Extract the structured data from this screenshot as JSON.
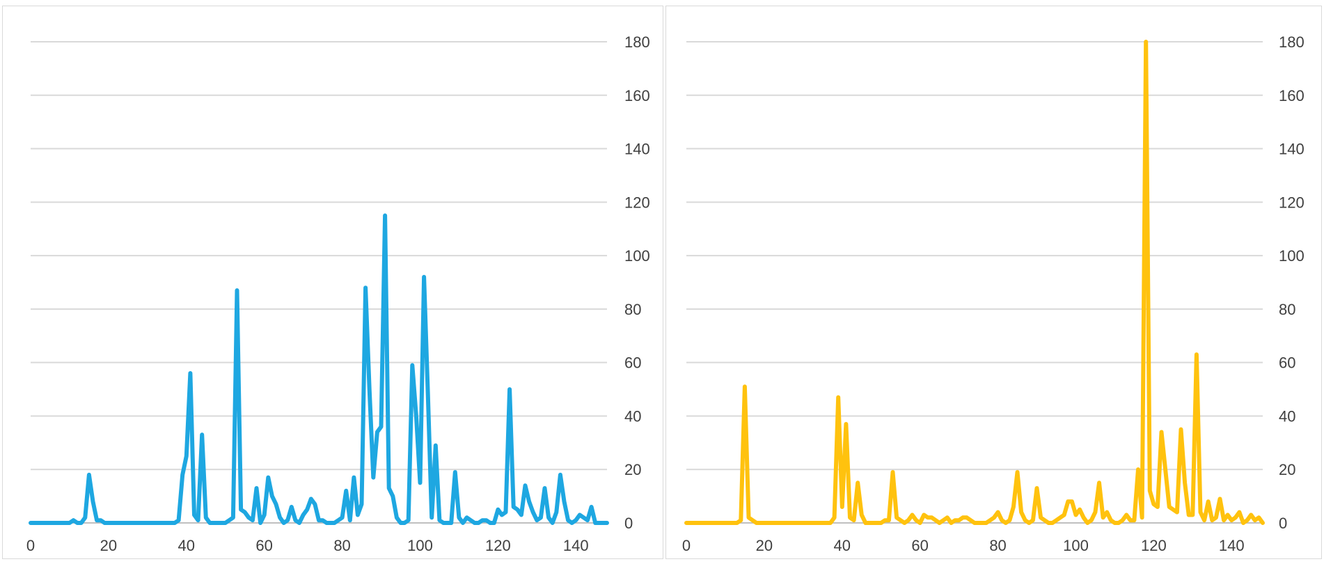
{
  "chart_data": [
    {
      "type": "line",
      "color": "#1ea7e1",
      "y_axis_side": "right",
      "xlim": [
        0,
        148
      ],
      "ylim": [
        0,
        180
      ],
      "x_ticks": [
        0,
        20,
        40,
        60,
        80,
        100,
        120,
        140
      ],
      "y_ticks": [
        0,
        20,
        40,
        60,
        80,
        100,
        120,
        140,
        160,
        180
      ],
      "grid": "horizontal",
      "legend": "none",
      "series": [
        {
          "x": [
            0,
            10,
            11,
            12,
            13,
            14,
            15,
            16,
            17,
            18,
            19,
            20,
            30,
            37,
            38,
            39,
            40,
            41,
            42,
            43,
            44,
            45,
            46,
            50,
            51,
            52,
            53,
            54,
            55,
            56,
            57,
            58,
            59,
            60,
            61,
            62,
            63,
            64,
            65,
            66,
            67,
            68,
            69,
            70,
            71,
            72,
            73,
            74,
            75,
            76,
            77,
            78,
            79,
            80,
            81,
            82,
            83,
            84,
            85,
            86,
            87,
            88,
            89,
            90,
            91,
            92,
            93,
            94,
            95,
            96,
            97,
            98,
            99,
            100,
            101,
            102,
            103,
            104,
            105,
            106,
            107,
            108,
            109,
            110,
            111,
            112,
            113,
            114,
            115,
            116,
            117,
            118,
            119,
            120,
            121,
            122,
            123,
            124,
            125,
            126,
            127,
            128,
            129,
            130,
            131,
            132,
            133,
            134,
            135,
            136,
            137,
            138,
            139,
            140,
            141,
            142,
            143,
            144,
            145,
            148
          ],
          "values": [
            0,
            0,
            1,
            0,
            0,
            2,
            18,
            8,
            1,
            1,
            0,
            0,
            0,
            0,
            1,
            18,
            25,
            56,
            3,
            1,
            33,
            2,
            0,
            0,
            1,
            2,
            87,
            5,
            4,
            2,
            1,
            13,
            0,
            3,
            17,
            10,
            7,
            2,
            0,
            1,
            6,
            1,
            0,
            3,
            5,
            9,
            7,
            1,
            1,
            0,
            0,
            0,
            1,
            2,
            12,
            1,
            17,
            3,
            7,
            88,
            50,
            17,
            34,
            36,
            115,
            13,
            10,
            2,
            0,
            0,
            1,
            59,
            40,
            15,
            92,
            49,
            2,
            29,
            1,
            0,
            0,
            0,
            19,
            2,
            0,
            2,
            1,
            0,
            0,
            1,
            1,
            0,
            0,
            5,
            3,
            4,
            50,
            6,
            5,
            3,
            14,
            8,
            4,
            1,
            2,
            13,
            2,
            0,
            4,
            18,
            8,
            1,
            0,
            1,
            3,
            2,
            1,
            6,
            0,
            0
          ]
        }
      ]
    },
    {
      "type": "line",
      "color": "#ffc20e",
      "y_axis_side": "right",
      "xlim": [
        0,
        148
      ],
      "ylim": [
        0,
        180
      ],
      "x_ticks": [
        0,
        20,
        40,
        60,
        80,
        100,
        120,
        140
      ],
      "y_ticks": [
        0,
        20,
        40,
        60,
        80,
        100,
        120,
        140,
        160,
        180
      ],
      "grid": "horizontal",
      "legend": "none",
      "series": [
        {
          "x": [
            0,
            13,
            14,
            15,
            16,
            17,
            18,
            20,
            30,
            37,
            38,
            39,
            40,
            41,
            42,
            43,
            44,
            45,
            46,
            50,
            51,
            52,
            53,
            54,
            55,
            56,
            57,
            58,
            59,
            60,
            61,
            62,
            63,
            64,
            65,
            66,
            67,
            68,
            69,
            70,
            71,
            72,
            73,
            74,
            75,
            76,
            77,
            78,
            79,
            80,
            81,
            82,
            83,
            84,
            85,
            86,
            87,
            88,
            89,
            90,
            91,
            92,
            93,
            94,
            95,
            96,
            97,
            98,
            99,
            100,
            101,
            102,
            103,
            104,
            105,
            106,
            107,
            108,
            109,
            110,
            111,
            112,
            113,
            114,
            115,
            116,
            117,
            118,
            119,
            120,
            121,
            122,
            123,
            124,
            125,
            126,
            127,
            128,
            129,
            130,
            131,
            132,
            133,
            134,
            135,
            136,
            137,
            138,
            139,
            140,
            141,
            142,
            143,
            144,
            145,
            146,
            147,
            148
          ],
          "values": [
            0,
            0,
            1,
            51,
            2,
            1,
            0,
            0,
            0,
            0,
            2,
            47,
            6,
            37,
            2,
            1,
            15,
            3,
            0,
            0,
            1,
            1,
            19,
            2,
            1,
            0,
            1,
            3,
            1,
            0,
            3,
            2,
            2,
            1,
            0,
            1,
            2,
            0,
            1,
            1,
            2,
            2,
            1,
            0,
            0,
            0,
            0,
            1,
            2,
            4,
            1,
            0,
            1,
            6,
            19,
            4,
            1,
            0,
            1,
            13,
            2,
            1,
            0,
            0,
            1,
            2,
            3,
            8,
            8,
            3,
            5,
            2,
            0,
            1,
            4,
            15,
            2,
            4,
            1,
            0,
            0,
            1,
            3,
            1,
            1,
            20,
            2,
            180,
            12,
            7,
            6,
            34,
            20,
            6,
            5,
            4,
            35,
            15,
            3,
            3,
            63,
            4,
            1,
            8,
            1,
            2,
            9,
            1,
            3,
            1,
            2,
            4,
            0,
            1,
            3,
            1,
            2,
            0
          ]
        }
      ]
    }
  ]
}
